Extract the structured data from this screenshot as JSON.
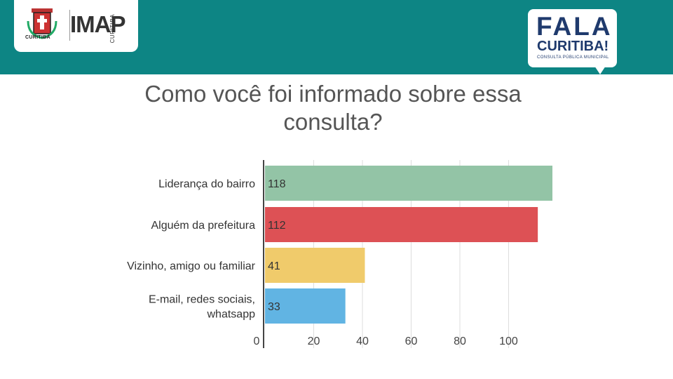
{
  "header": {
    "city_name": "CURITIBA",
    "imap_logo": "IMAP",
    "imap_sub": "CURITIBA",
    "fala_line1": "FALA",
    "fala_line2": "CURITIBA!",
    "fala_line3": "CONSULTA PÚBLICA MUNICIPAL",
    "banner_color": "#0d8584"
  },
  "chart_data": {
    "type": "bar",
    "orientation": "horizontal",
    "title": "Como você foi informado sobre essa consulta?",
    "categories": [
      "Liderança do bairro",
      "Alguém da prefeitura",
      "Vizinho, amigo ou familiar",
      "E-mail, redes sociais, whatsapp"
    ],
    "category_lines": [
      [
        "Liderança do bairro"
      ],
      [
        "Alguém da prefeitura"
      ],
      [
        "Vizinho, amigo ou familiar"
      ],
      [
        "E-mail, redes sociais,",
        "whatsapp"
      ]
    ],
    "values": [
      118,
      112,
      41,
      33
    ],
    "colors": [
      "#93c4a6",
      "#dd5155",
      "#f0cb6b",
      "#61b4e3"
    ],
    "xlim": [
      0,
      118
    ],
    "xticks": [
      0,
      20,
      40,
      60,
      80,
      100
    ],
    "grid": true
  }
}
